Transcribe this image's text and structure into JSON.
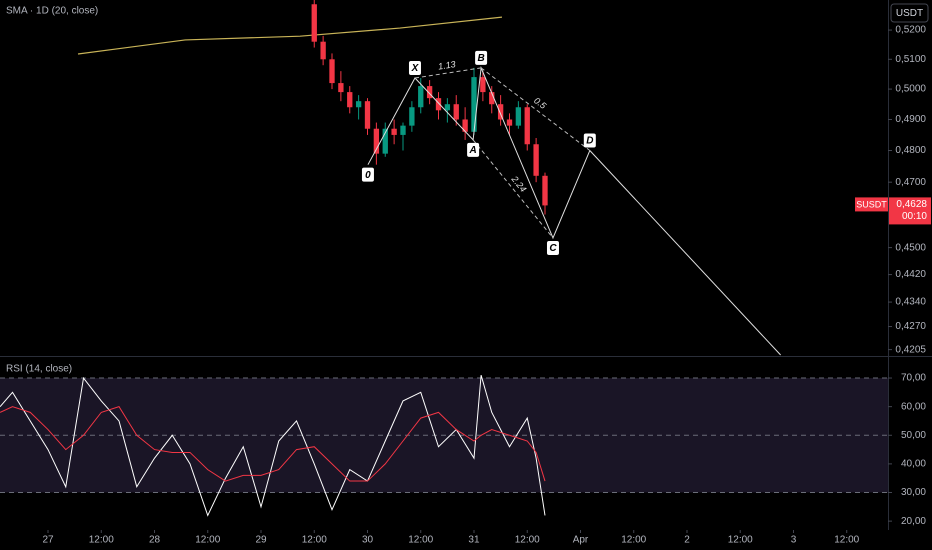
{
  "chart_data": [
    {
      "type": "candlestick",
      "title": "SMA · 1D (20, close)",
      "log_scale": true,
      "ylim": [
        0.419,
        0.5305
      ],
      "xlim": [
        -10.82,
        189.3
      ],
      "yticks": [
        {
          "value": 0.52,
          "label": "0,5200"
        },
        {
          "value": 0.51,
          "label": "0,5100"
        },
        {
          "value": 0.5,
          "label": "0,5000"
        },
        {
          "value": 0.49,
          "label": "0,4900"
        },
        {
          "value": 0.48,
          "label": "0,4800"
        },
        {
          "value": 0.47,
          "label": "0,4700"
        },
        {
          "value": 0.45,
          "label": "0,4500"
        },
        {
          "value": 0.442,
          "label": "0,4420"
        },
        {
          "value": 0.434,
          "label": "0,4340"
        },
        {
          "value": 0.427,
          "label": "0,4270"
        },
        {
          "value": 0.4205,
          "label": "0,4205"
        }
      ],
      "currency": "USDT",
      "up_color": "#089981",
      "down_color": "#f23645",
      "x": [
        60,
        62,
        64,
        66,
        68,
        70,
        72,
        74,
        76,
        78,
        80,
        82,
        84,
        86,
        88,
        90,
        92,
        94,
        96,
        98,
        100,
        102,
        104,
        106,
        108,
        110,
        112
      ],
      "open": [
        0.529,
        0.516,
        0.51,
        0.502,
        0.499,
        0.494,
        0.496,
        0.487,
        0.479,
        0.487,
        0.485,
        0.488,
        0.494,
        0.501,
        0.497,
        0.493,
        0.495,
        0.49,
        0.486,
        0.504,
        0.499,
        0.495,
        0.49,
        0.488,
        0.494,
        0.482,
        0.472
      ],
      "high": [
        0.5305,
        0.518,
        0.512,
        0.506,
        0.501,
        0.498,
        0.497,
        0.489,
        0.489,
        0.49,
        0.489,
        0.496,
        0.5037,
        0.503,
        0.499,
        0.497,
        0.498,
        0.494,
        0.5071,
        0.506,
        0.501,
        0.498,
        0.492,
        0.496,
        0.495,
        0.484,
        0.473
      ],
      "low": [
        0.514,
        0.508,
        0.5,
        0.496,
        0.492,
        0.49,
        0.485,
        0.4755,
        0.478,
        0.482,
        0.48,
        0.486,
        0.492,
        0.495,
        0.49,
        0.489,
        0.488,
        0.4834,
        0.485,
        0.496,
        0.492,
        0.488,
        0.485,
        0.487,
        0.48,
        0.47,
        0.46
      ],
      "close": [
        0.516,
        0.51,
        0.502,
        0.499,
        0.494,
        0.496,
        0.487,
        0.479,
        0.487,
        0.485,
        0.488,
        0.494,
        0.501,
        0.497,
        0.493,
        0.495,
        0.49,
        0.486,
        0.504,
        0.499,
        0.495,
        0.49,
        0.488,
        0.494,
        0.482,
        0.472,
        0.4628
      ],
      "sma": {
        "color": "#c9b458",
        "x": [
          6.76,
          30.9,
          56.8,
          79.3,
          102.3
        ],
        "values": [
          0.5118,
          0.5166,
          0.5179,
          0.5207,
          0.5245
        ]
      },
      "pattern": {
        "labels": [
          "0",
          "X",
          "A",
          "B",
          "C",
          "D"
        ],
        "x": [
          72.1,
          82.7,
          95.8,
          97.6,
          113.8,
          122.1
        ],
        "values": [
          0.4755,
          0.5037,
          0.4834,
          0.5071,
          0.4529,
          0.48
        ]
      },
      "projection": {
        "x": [
          122.1,
          165.1
        ],
        "values": [
          0.48,
          0.419
        ]
      },
      "ratios": [
        {
          "label": "1.13",
          "from": 1,
          "to": 3
        },
        {
          "label": "0.5",
          "from": 3,
          "to": 5
        },
        {
          "label": "2.24",
          "from": 2,
          "to": 4
        }
      ],
      "last_price": {
        "symbol": "SUSDT",
        "value": 0.4628,
        "label": "0,4628",
        "countdown": "00:10",
        "color": "#f23645"
      }
    },
    {
      "type": "line",
      "title": "RSI (14, close)",
      "ylim": [
        16.9,
        77
      ],
      "xlim": [
        -10.82,
        189.3
      ],
      "yticks": [
        {
          "value": 70,
          "label": "70,00"
        },
        {
          "value": 60,
          "label": "60,00"
        },
        {
          "value": 50,
          "label": "50,00"
        },
        {
          "value": 40,
          "label": "40,00"
        },
        {
          "value": 30,
          "label": "30,00"
        },
        {
          "value": 20,
          "label": "20,00"
        }
      ],
      "bands": [
        30,
        70
      ],
      "band_color": "#1a1526",
      "dashed_levels": [
        70,
        50,
        30
      ],
      "xticks": [
        {
          "value": 0,
          "label": "27"
        },
        {
          "value": 12,
          "label": "12:00"
        },
        {
          "value": 24,
          "label": "28"
        },
        {
          "value": 36,
          "label": "12:00"
        },
        {
          "value": 48,
          "label": "29"
        },
        {
          "value": 60,
          "label": "12:00"
        },
        {
          "value": 72,
          "label": "30"
        },
        {
          "value": 84,
          "label": "12:00"
        },
        {
          "value": 96,
          "label": "31"
        },
        {
          "value": 108,
          "label": "12:00"
        },
        {
          "value": 120,
          "label": "Apr"
        },
        {
          "value": 132,
          "label": "12:00"
        },
        {
          "value": 144,
          "label": "2"
        },
        {
          "value": 156,
          "label": "12:00"
        },
        {
          "value": 168,
          "label": "3"
        },
        {
          "value": 180,
          "label": "12:00"
        }
      ],
      "x": [
        -10.8,
        -8,
        -4,
        0,
        4,
        8,
        12,
        16,
        20,
        24,
        28,
        32,
        36,
        40,
        44,
        48,
        52,
        56,
        60,
        64,
        68,
        72,
        76,
        80,
        84,
        88,
        92,
        96,
        97.6,
        100,
        104,
        108,
        110,
        112
      ],
      "series": [
        {
          "color": "#ffffff",
          "values": [
            60,
            65,
            55,
            45,
            32,
            70,
            62,
            55,
            32,
            42,
            50,
            40,
            22,
            35,
            46,
            25,
            48,
            55,
            40,
            24,
            38,
            34,
            48,
            62,
            65,
            46,
            52,
            42,
            71,
            58,
            46,
            56,
            42,
            22
          ]
        },
        {
          "color": "#f23645",
          "values": [
            58,
            60,
            58,
            52,
            45,
            50,
            58,
            60,
            50,
            45,
            44,
            44,
            38,
            34,
            36,
            36,
            38,
            45,
            46,
            40,
            34,
            34,
            40,
            48,
            56,
            58,
            52,
            48,
            50,
            52,
            50,
            48,
            44,
            34
          ]
        }
      ]
    }
  ]
}
